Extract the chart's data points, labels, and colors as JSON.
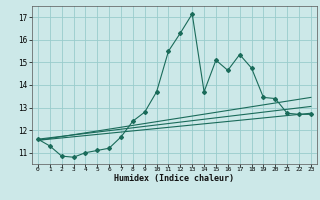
{
  "xlabel": "Humidex (Indice chaleur)",
  "bg_color": "#cce8e8",
  "grid_color": "#99cccc",
  "line_color": "#1a6b5a",
  "xlim": [
    -0.5,
    23.5
  ],
  "ylim": [
    10.5,
    17.5
  ],
  "yticks": [
    11,
    12,
    13,
    14,
    15,
    16,
    17
  ],
  "xticks": [
    0,
    1,
    2,
    3,
    4,
    5,
    6,
    7,
    8,
    9,
    10,
    11,
    12,
    13,
    14,
    15,
    16,
    17,
    18,
    19,
    20,
    21,
    22,
    23
  ],
  "main_line_x": [
    0,
    1,
    2,
    3,
    4,
    5,
    6,
    7,
    8,
    9,
    10,
    11,
    12,
    13,
    14,
    15,
    16,
    17,
    18,
    19,
    20,
    21,
    22,
    23
  ],
  "main_line_y": [
    11.6,
    11.3,
    10.85,
    10.8,
    11.0,
    11.1,
    11.2,
    11.7,
    12.4,
    12.8,
    13.7,
    15.5,
    16.3,
    17.15,
    13.7,
    15.1,
    14.65,
    15.35,
    14.75,
    13.45,
    13.4,
    12.75,
    12.7,
    12.7
  ],
  "trend_lines": [
    {
      "x0": 0,
      "y0": 11.55,
      "x1": 23,
      "y1": 13.45
    },
    {
      "x0": 0,
      "y0": 11.6,
      "x1": 23,
      "y1": 13.05
    },
    {
      "x0": 0,
      "y0": 11.55,
      "x1": 23,
      "y1": 12.75
    }
  ]
}
